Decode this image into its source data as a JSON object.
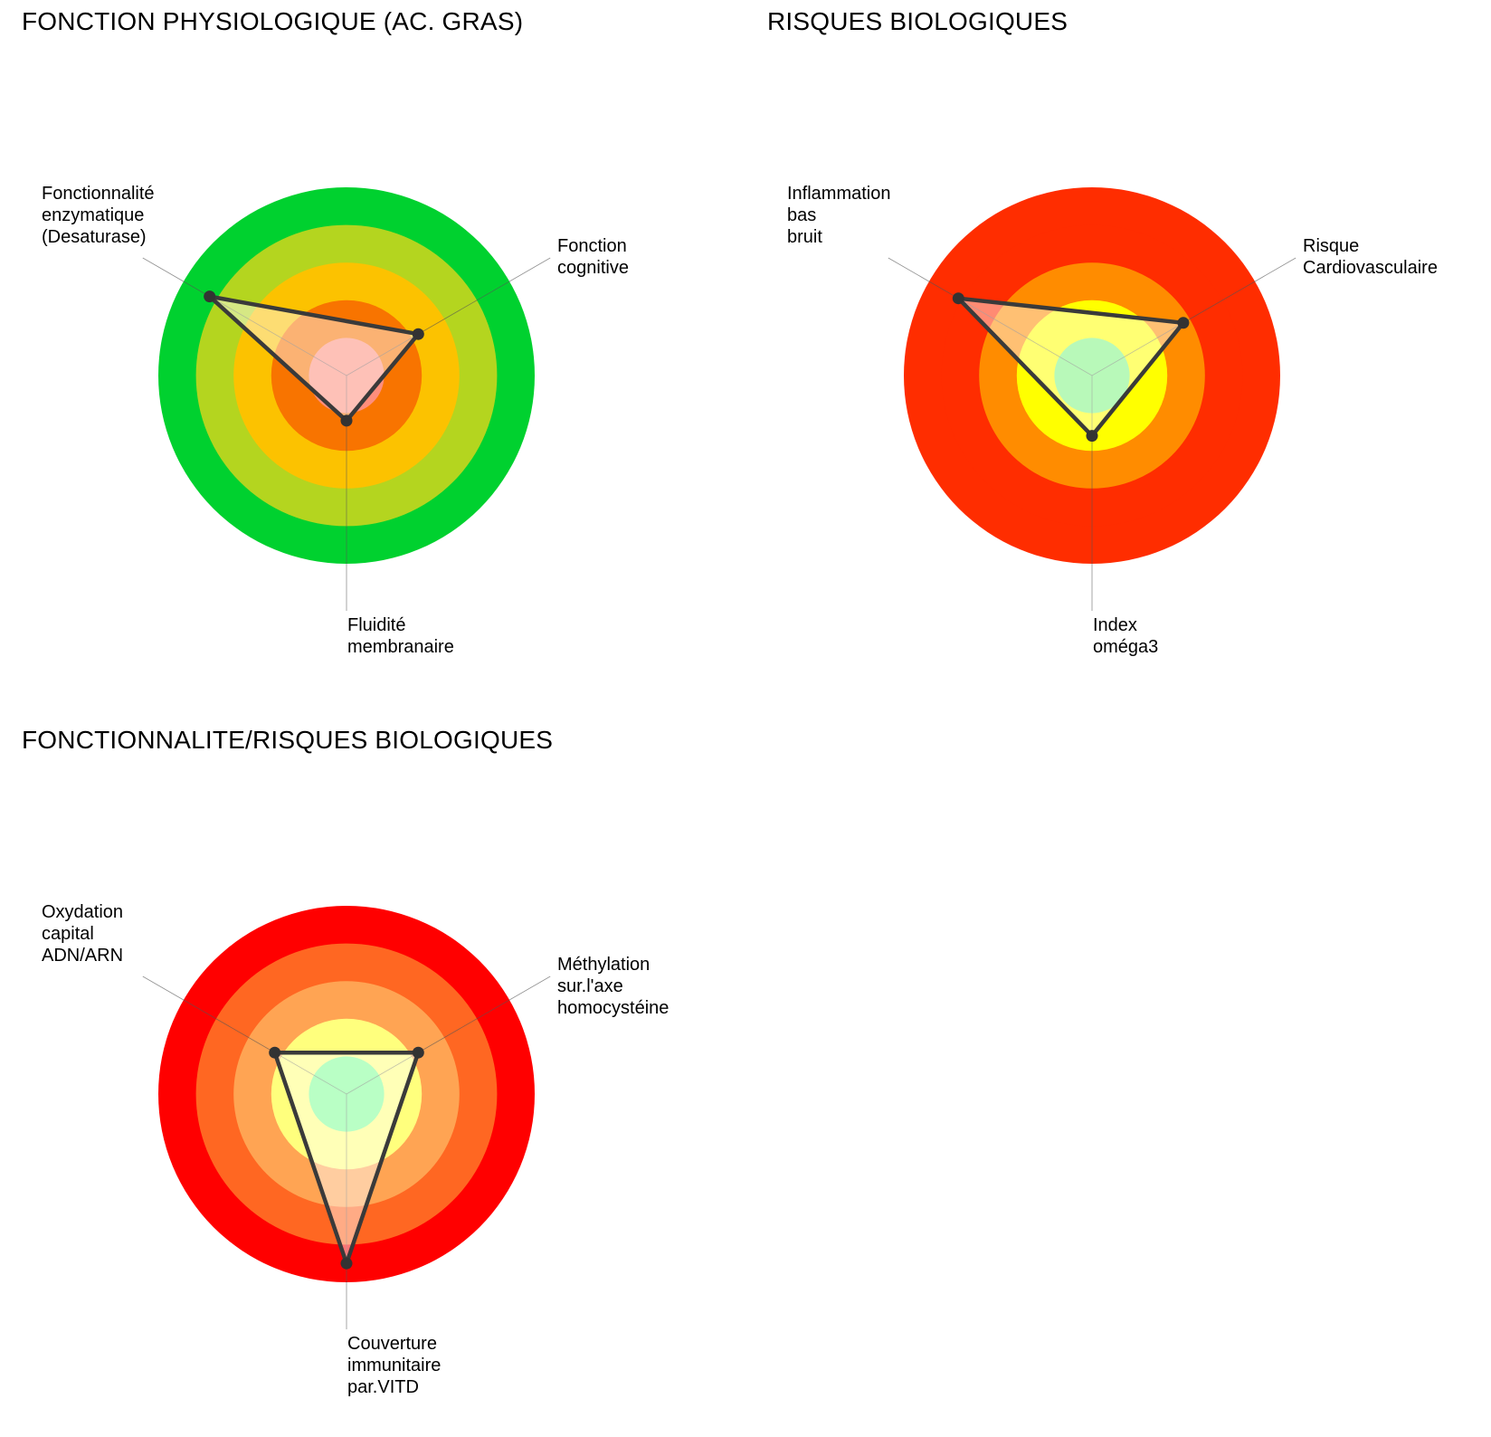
{
  "charts": [
    {
      "title": "FONCTION PHYSIOLOGIQUE (AC. GRAS)",
      "chart_type": "radar",
      "scale_max": 5,
      "ring_colors": [
        "#00d12f",
        "#b4d51f",
        "#fcc200",
        "#f87400",
        "#fe8e7d"
      ],
      "ring_colors_order": "outer-to-inner",
      "axes": [
        {
          "label_lines": [
            "Fonctionnalité",
            "enzymatique",
            "(Desaturase)"
          ]
        },
        {
          "label_lines": [
            "Fonction",
            "cognitive"
          ]
        },
        {
          "label_lines": [
            "Fluidité",
            "membranaire"
          ]
        }
      ],
      "values": [
        4.2,
        2.2,
        1.2
      ]
    },
    {
      "title": "RISQUES BIOLOGIQUES",
      "chart_type": "radar",
      "scale_max": 5,
      "ring_colors": [
        "#ff2d00",
        "#ff2d00",
        "#ff8c00",
        "#ffff00",
        "#7ff580"
      ],
      "ring_colors_order": "outer-to-inner",
      "axes": [
        {
          "label_lines": [
            "Inflammation",
            "bas",
            "bruit"
          ]
        },
        {
          "label_lines": [
            "Risque",
            "Cardiovasculaire"
          ]
        },
        {
          "label_lines": [
            "Index",
            "oméga3"
          ]
        }
      ],
      "values": [
        4.1,
        2.8,
        1.6
      ]
    },
    {
      "title": "FONCTIONNALITE/RISQUES BIOLOGIQUES",
      "chart_type": "radar",
      "scale_max": 5,
      "ring_colors": [
        "#ff0000",
        "#ff6722",
        "#ffa453",
        "#ffff7d",
        "#80ff96"
      ],
      "ring_colors_order": "outer-to-inner",
      "axes": [
        {
          "label_lines": [
            "Oxydation",
            "capital",
            "ADN/ARN"
          ]
        },
        {
          "label_lines": [
            "Méthylation",
            "sur.l'axe",
            "homocystéine"
          ]
        },
        {
          "label_lines": [
            "Couverture",
            "immunitaire",
            "par.VITD"
          ]
        }
      ],
      "values": [
        2.2,
        2.2,
        4.5
      ]
    }
  ],
  "chart_data": [
    {
      "type": "radar",
      "title": "FONCTION PHYSIOLOGIQUE (AC. GRAS)",
      "categories": [
        "Fonctionnalité enzymatique (Desaturase)",
        "Fonction cognitive",
        "Fluidité membranaire"
      ],
      "values": [
        4.2,
        2.2,
        1.2
      ],
      "rlim": [
        0,
        5
      ]
    },
    {
      "type": "radar",
      "title": "RISQUES BIOLOGIQUES",
      "categories": [
        "Inflammation bas bruit",
        "Risque Cardiovasculaire",
        "Index oméga3"
      ],
      "values": [
        4.1,
        2.8,
        1.6
      ],
      "rlim": [
        0,
        5
      ]
    },
    {
      "type": "radar",
      "title": "FONCTIONNALITE/RISQUES BIOLOGIQUES",
      "categories": [
        "Oxydation capital ADN/ARN",
        "Méthylation sur.l'axe homocystéine",
        "Couverture immunitaire par.VITD"
      ],
      "values": [
        2.2,
        2.2,
        4.5
      ],
      "rlim": [
        0,
        5
      ]
    }
  ]
}
